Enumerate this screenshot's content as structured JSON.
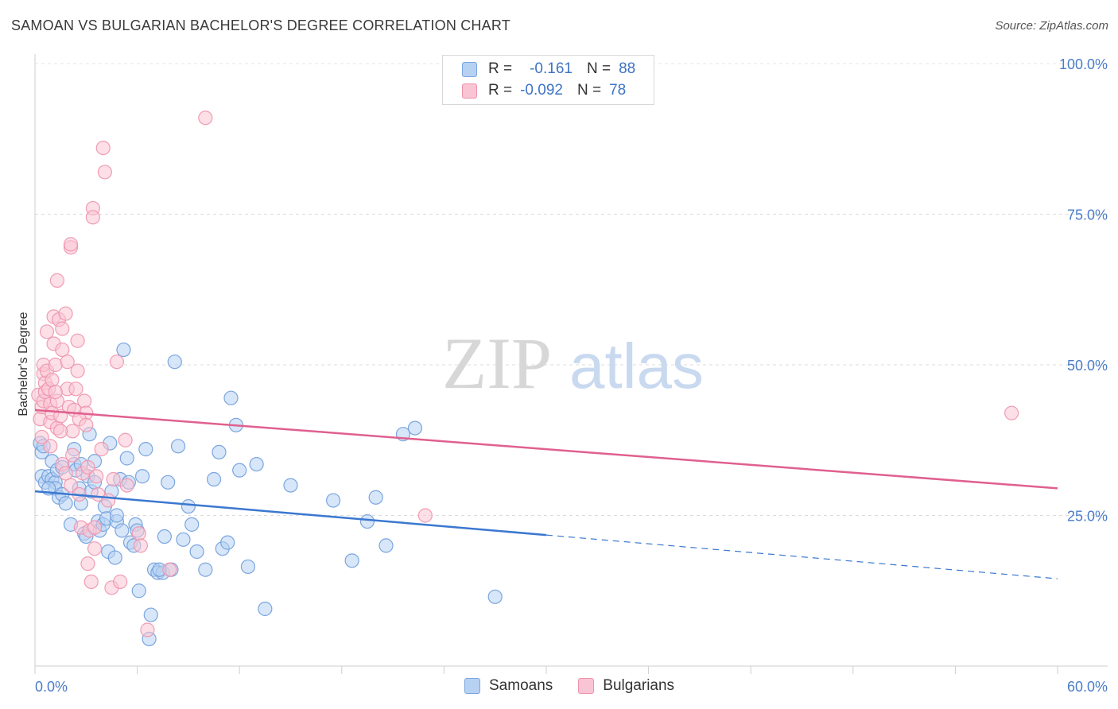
{
  "title": "SAMOAN VS BULGARIAN BACHELOR'S DEGREE CORRELATION CHART",
  "source": "Source: ZipAtlas.com",
  "watermark": {
    "zip": "ZIP",
    "atlas": "atlas"
  },
  "legend": {
    "rows": [
      {
        "r_label": "R =",
        "r_value": "-0.161",
        "n_label": "N =",
        "n_value": "88"
      },
      {
        "r_label": "R =",
        "r_value": "-0.092",
        "n_label": "N =",
        "n_value": "78"
      }
    ]
  },
  "bottom_legend": {
    "samoans": "Samoans",
    "bulgarians": "Bulgarians"
  },
  "chart_data": {
    "type": "scatter",
    "title": "SAMOAN VS BULGARIAN BACHELOR'S DEGREE CORRELATION CHART",
    "xlabel": "",
    "ylabel": "Bachelor's Degree",
    "xlim": [
      0,
      60
    ],
    "ylim": [
      0,
      100
    ],
    "x_tick_labels": [
      "0.0%",
      "60.0%"
    ],
    "y_tick_labels": [
      "25.0%",
      "50.0%",
      "75.0%",
      "100.0%"
    ],
    "y_ticks": [
      25,
      50,
      75,
      100
    ],
    "grid": true,
    "legend_position": "top-center",
    "colors": {
      "samoans": "#3a78d0",
      "bulgarians": "#e0608f",
      "samoans_fill": "#b7d1f3",
      "bulgarians_fill": "#f9c4d3",
      "tick": "#4a7cc9"
    },
    "series": [
      {
        "name": "Samoans",
        "r": -0.161,
        "n": 88,
        "trend": {
          "x0": 0,
          "y0": 29,
          "x_solid_end": 30,
          "x_end": 60,
          "y_end": 14.5
        },
        "points": [
          [
            0.3,
            37
          ],
          [
            0.4,
            35.5
          ],
          [
            0.4,
            31.5
          ],
          [
            0.6,
            30.5
          ],
          [
            0.8,
            31.5
          ],
          [
            1.0,
            34
          ],
          [
            1.0,
            31
          ],
          [
            1.2,
            30.5
          ],
          [
            1.2,
            29.5
          ],
          [
            1.4,
            28
          ],
          [
            1.6,
            28.5
          ],
          [
            1.8,
            27
          ],
          [
            2.1,
            23.5
          ],
          [
            2.3,
            33.5
          ],
          [
            2.4,
            32.5
          ],
          [
            2.6,
            29.5
          ],
          [
            2.7,
            33.5
          ],
          [
            2.9,
            22
          ],
          [
            3.0,
            21.5
          ],
          [
            3.1,
            31.5
          ],
          [
            3.3,
            29
          ],
          [
            3.5,
            30.5
          ],
          [
            3.7,
            24
          ],
          [
            3.8,
            22.5
          ],
          [
            4.0,
            23.5
          ],
          [
            4.1,
            26.5
          ],
          [
            4.2,
            24.5
          ],
          [
            4.3,
            19
          ],
          [
            4.4,
            37
          ],
          [
            4.5,
            29
          ],
          [
            4.7,
            18
          ],
          [
            4.8,
            24
          ],
          [
            5.0,
            31
          ],
          [
            5.1,
            22.5
          ],
          [
            5.2,
            52.5
          ],
          [
            5.4,
            34.5
          ],
          [
            5.6,
            20.5
          ],
          [
            5.8,
            20
          ],
          [
            5.9,
            23.5
          ],
          [
            6.1,
            12.5
          ],
          [
            6.3,
            31.5
          ],
          [
            6.5,
            36
          ],
          [
            6.8,
            8.5
          ],
          [
            7.0,
            16
          ],
          [
            7.2,
            15.5
          ],
          [
            7.5,
            15.5
          ],
          [
            7.6,
            21.5
          ],
          [
            7.8,
            30.5
          ],
          [
            8.0,
            16
          ],
          [
            8.2,
            50.5
          ],
          [
            8.4,
            36.5
          ],
          [
            8.7,
            21
          ],
          [
            9.0,
            26.5
          ],
          [
            9.2,
            23.5
          ],
          [
            9.5,
            19
          ],
          [
            10.0,
            16
          ],
          [
            10.5,
            31
          ],
          [
            10.8,
            35.5
          ],
          [
            11.0,
            19.5
          ],
          [
            11.3,
            20.5
          ],
          [
            11.5,
            44.5
          ],
          [
            11.8,
            40
          ],
          [
            12.0,
            32.5
          ],
          [
            12.5,
            16.5
          ],
          [
            13.0,
            33.5
          ],
          [
            13.5,
            9.5
          ],
          [
            15.0,
            30
          ],
          [
            17.5,
            27.5
          ],
          [
            18.6,
            17.5
          ],
          [
            19.5,
            24
          ],
          [
            20.0,
            28
          ],
          [
            20.6,
            20
          ],
          [
            21.6,
            38.5
          ],
          [
            22.3,
            39.5
          ],
          [
            27.0,
            11.5
          ],
          [
            2.3,
            36
          ],
          [
            3.5,
            34
          ],
          [
            5.5,
            30.5
          ],
          [
            1.3,
            32.5
          ],
          [
            4.8,
            25
          ],
          [
            2.7,
            27
          ],
          [
            0.8,
            29.5
          ],
          [
            6.7,
            4.5
          ],
          [
            3.2,
            38.5
          ],
          [
            1.6,
            33
          ],
          [
            6.0,
            22.5
          ],
          [
            7.3,
            16
          ],
          [
            0.5,
            36.5
          ]
        ]
      },
      {
        "name": "Bulgarians",
        "r": -0.092,
        "n": 78,
        "trend": {
          "x0": 0,
          "y0": 42.5,
          "x_end": 60,
          "y_end": 29.5
        },
        "points": [
          [
            0.2,
            45
          ],
          [
            0.3,
            41
          ],
          [
            0.4,
            43
          ],
          [
            0.5,
            44
          ],
          [
            0.5,
            48.5
          ],
          [
            0.5,
            50
          ],
          [
            0.6,
            47
          ],
          [
            0.6,
            45.5
          ],
          [
            0.7,
            49
          ],
          [
            0.8,
            46
          ],
          [
            0.9,
            43.5
          ],
          [
            0.9,
            40.5
          ],
          [
            1.0,
            42
          ],
          [
            1.0,
            47.5
          ],
          [
            1.1,
            58
          ],
          [
            1.1,
            53.5
          ],
          [
            1.2,
            50
          ],
          [
            1.3,
            44
          ],
          [
            1.3,
            64
          ],
          [
            1.3,
            39.5
          ],
          [
            1.4,
            57.5
          ],
          [
            1.5,
            41.5
          ],
          [
            1.6,
            56
          ],
          [
            1.6,
            33.5
          ],
          [
            1.6,
            52.5
          ],
          [
            1.8,
            58.5
          ],
          [
            1.8,
            32
          ],
          [
            1.9,
            46
          ],
          [
            2.0,
            43
          ],
          [
            2.1,
            69.5
          ],
          [
            2.1,
            70
          ],
          [
            2.1,
            30
          ],
          [
            2.2,
            39
          ],
          [
            2.3,
            42.5
          ],
          [
            2.4,
            46
          ],
          [
            2.5,
            54
          ],
          [
            2.5,
            49
          ],
          [
            2.6,
            28.5
          ],
          [
            2.7,
            23
          ],
          [
            2.8,
            32
          ],
          [
            2.9,
            44
          ],
          [
            3.0,
            42
          ],
          [
            3.1,
            17
          ],
          [
            3.1,
            33
          ],
          [
            3.2,
            22.5
          ],
          [
            3.3,
            14
          ],
          [
            3.4,
            76
          ],
          [
            3.4,
            74.5
          ],
          [
            3.5,
            19.5
          ],
          [
            3.5,
            23
          ],
          [
            3.6,
            31.5
          ],
          [
            3.7,
            28.5
          ],
          [
            3.9,
            36
          ],
          [
            4.0,
            86
          ],
          [
            4.1,
            82
          ],
          [
            4.5,
            13
          ],
          [
            4.6,
            31
          ],
          [
            4.8,
            50.5
          ],
          [
            5.0,
            14
          ],
          [
            5.3,
            37.5
          ],
          [
            5.4,
            30
          ],
          [
            6.1,
            22
          ],
          [
            6.6,
            6
          ],
          [
            7.9,
            16
          ],
          [
            10.0,
            91
          ],
          [
            22.9,
            25
          ],
          [
            57.3,
            42
          ],
          [
            0.7,
            55.5
          ],
          [
            1.5,
            39
          ],
          [
            2.2,
            35
          ],
          [
            2.6,
            41
          ],
          [
            0.9,
            36.5
          ],
          [
            3.0,
            40
          ],
          [
            1.2,
            45.5
          ],
          [
            4.3,
            27.5
          ],
          [
            6.2,
            20
          ],
          [
            0.4,
            38
          ],
          [
            1.9,
            50.5
          ]
        ]
      }
    ]
  }
}
